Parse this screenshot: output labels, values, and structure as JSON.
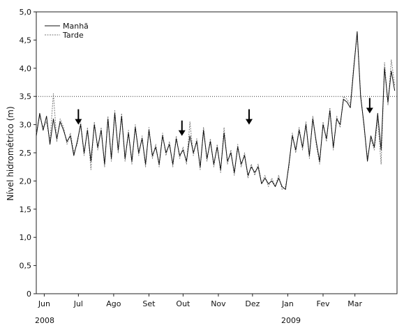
{
  "chart_data": {
    "type": "line",
    "xlabel": "",
    "ylabel": "Nível hidrométrico (m)",
    "ylim": [
      0,
      5
    ],
    "y_ticks": [
      "0",
      "0,5",
      "1,0",
      "1,5",
      "2,0",
      "2,5",
      "3,0",
      "3,5",
      "4,0",
      "4,5",
      "5,0"
    ],
    "x_ticks": [
      "Jun",
      "Jul",
      "Ago",
      "Set",
      "Out",
      "Nov",
      "Dez",
      "Jan",
      "Fev",
      "Mar"
    ],
    "year_labels": [
      "2008",
      "2009"
    ],
    "legend_position": "top-left",
    "grid": false,
    "reference_line": {
      "y": 3.5,
      "style": "dotted"
    },
    "arrows": [
      {
        "date": "2008-07-01",
        "y": 3.0
      },
      {
        "date": "2008-09-30",
        "y": 2.8
      },
      {
        "date": "2008-11-28",
        "y": 3.0
      },
      {
        "date": "2009-03-14",
        "y": 3.2
      }
    ],
    "x_start": "2008-05-25",
    "x_end": "2009-04-07",
    "series": [
      {
        "name": "Manhã",
        "color": "#111111",
        "style": "solid",
        "x": [
          "2008-05-25",
          "2008-05-28",
          "2008-05-31",
          "2008-06-03",
          "2008-06-06",
          "2008-06-09",
          "2008-06-12",
          "2008-06-15",
          "2008-06-18",
          "2008-06-21",
          "2008-06-24",
          "2008-06-27",
          "2008-06-30",
          "2008-07-03",
          "2008-07-06",
          "2008-07-09",
          "2008-07-12",
          "2008-07-15",
          "2008-07-18",
          "2008-07-21",
          "2008-07-24",
          "2008-07-27",
          "2008-07-30",
          "2008-08-02",
          "2008-08-05",
          "2008-08-08",
          "2008-08-11",
          "2008-08-14",
          "2008-08-17",
          "2008-08-20",
          "2008-08-23",
          "2008-08-26",
          "2008-08-29",
          "2008-09-01",
          "2008-09-04",
          "2008-09-07",
          "2008-09-10",
          "2008-09-13",
          "2008-09-16",
          "2008-09-19",
          "2008-09-22",
          "2008-09-25",
          "2008-09-28",
          "2008-10-01",
          "2008-10-04",
          "2008-10-07",
          "2008-10-10",
          "2008-10-13",
          "2008-10-16",
          "2008-10-19",
          "2008-10-22",
          "2008-10-25",
          "2008-10-28",
          "2008-10-31",
          "2008-11-03",
          "2008-11-06",
          "2008-11-09",
          "2008-11-12",
          "2008-11-15",
          "2008-11-18",
          "2008-11-21",
          "2008-11-24",
          "2008-11-27",
          "2008-11-30",
          "2008-12-03",
          "2008-12-06",
          "2008-12-09",
          "2008-12-12",
          "2008-12-15",
          "2008-12-18",
          "2008-12-21",
          "2008-12-24",
          "2008-12-27",
          "2008-12-30",
          "2009-01-02",
          "2009-01-05",
          "2009-01-08",
          "2009-01-11",
          "2009-01-14",
          "2009-01-17",
          "2009-01-20",
          "2009-01-23",
          "2009-01-26",
          "2009-01-29",
          "2009-02-01",
          "2009-02-04",
          "2009-02-07",
          "2009-02-10",
          "2009-02-13",
          "2009-02-16",
          "2009-02-19",
          "2009-02-22",
          "2009-02-25",
          "2009-02-28",
          "2009-03-03",
          "2009-03-06",
          "2009-03-09",
          "2009-03-12",
          "2009-03-15",
          "2009-03-18",
          "2009-03-21",
          "2009-03-24",
          "2009-03-27",
          "2009-03-30",
          "2009-04-02",
          "2009-04-05"
        ],
        "values": [
          2.8,
          3.2,
          2.9,
          3.15,
          2.65,
          3.1,
          2.75,
          3.05,
          2.9,
          2.7,
          2.8,
          2.45,
          2.7,
          3.0,
          2.5,
          2.9,
          2.35,
          3.0,
          2.6,
          2.9,
          2.3,
          3.1,
          2.4,
          3.2,
          2.55,
          3.15,
          2.4,
          2.85,
          2.35,
          2.95,
          2.5,
          2.75,
          2.3,
          2.9,
          2.45,
          2.6,
          2.3,
          2.8,
          2.5,
          2.65,
          2.3,
          2.75,
          2.45,
          2.55,
          2.35,
          2.8,
          2.5,
          2.7,
          2.25,
          2.9,
          2.4,
          2.7,
          2.3,
          2.6,
          2.2,
          2.85,
          2.35,
          2.5,
          2.15,
          2.6,
          2.3,
          2.45,
          2.1,
          2.25,
          2.15,
          2.25,
          1.95,
          2.05,
          1.95,
          2.0,
          1.9,
          2.05,
          1.9,
          1.85,
          2.3,
          2.8,
          2.55,
          2.9,
          2.6,
          3.0,
          2.45,
          3.1,
          2.7,
          2.35,
          3.0,
          2.75,
          3.25,
          2.6,
          3.1,
          3.0,
          3.45,
          3.4,
          3.3,
          4.0,
          4.65,
          3.5,
          3.0,
          2.35,
          2.8,
          2.6,
          3.2,
          2.55,
          4.0,
          3.4,
          3.95,
          3.6
        ]
      },
      {
        "name": "Tarde",
        "color": "#777777",
        "style": "dotted",
        "x": [
          "2008-05-25",
          "2008-05-28",
          "2008-05-31",
          "2008-06-03",
          "2008-06-06",
          "2008-06-09",
          "2008-06-12",
          "2008-06-15",
          "2008-06-18",
          "2008-06-21",
          "2008-06-24",
          "2008-06-27",
          "2008-06-30",
          "2008-07-03",
          "2008-07-06",
          "2008-07-09",
          "2008-07-12",
          "2008-07-15",
          "2008-07-18",
          "2008-07-21",
          "2008-07-24",
          "2008-07-27",
          "2008-07-30",
          "2008-08-02",
          "2008-08-05",
          "2008-08-08",
          "2008-08-11",
          "2008-08-14",
          "2008-08-17",
          "2008-08-20",
          "2008-08-23",
          "2008-08-26",
          "2008-08-29",
          "2008-09-01",
          "2008-09-04",
          "2008-09-07",
          "2008-09-10",
          "2008-09-13",
          "2008-09-16",
          "2008-09-19",
          "2008-09-22",
          "2008-09-25",
          "2008-09-28",
          "2008-10-01",
          "2008-10-04",
          "2008-10-07",
          "2008-10-10",
          "2008-10-13",
          "2008-10-16",
          "2008-10-19",
          "2008-10-22",
          "2008-10-25",
          "2008-10-28",
          "2008-10-31",
          "2008-11-03",
          "2008-11-06",
          "2008-11-09",
          "2008-11-12",
          "2008-11-15",
          "2008-11-18",
          "2008-11-21",
          "2008-11-24",
          "2008-11-27",
          "2008-11-30",
          "2008-12-03",
          "2008-12-06",
          "2008-12-09",
          "2008-12-12",
          "2008-12-15",
          "2008-12-18",
          "2008-12-21",
          "2008-12-24",
          "2008-12-27",
          "2008-12-30",
          "2009-01-02",
          "2009-01-05",
          "2009-01-08",
          "2009-01-11",
          "2009-01-14",
          "2009-01-17",
          "2009-01-20",
          "2009-01-23",
          "2009-01-26",
          "2009-01-29",
          "2009-02-01",
          "2009-02-04",
          "2009-02-07",
          "2009-02-10",
          "2009-02-13",
          "2009-02-16",
          "2009-02-19",
          "2009-02-22",
          "2009-02-25",
          "2009-02-28",
          "2009-03-03",
          "2009-03-06",
          "2009-03-09",
          "2009-03-12",
          "2009-03-15",
          "2009-03-18",
          "2009-03-21",
          "2009-03-24",
          "2009-03-27",
          "2009-03-30",
          "2009-04-02",
          "2009-04-05"
        ],
        "values": [
          2.85,
          3.15,
          2.95,
          3.05,
          2.7,
          3.55,
          2.7,
          3.1,
          2.95,
          2.65,
          2.85,
          2.5,
          2.65,
          3.05,
          2.45,
          2.95,
          2.2,
          3.05,
          2.55,
          2.95,
          2.25,
          3.15,
          2.35,
          3.25,
          2.5,
          3.2,
          2.35,
          2.9,
          2.3,
          3.0,
          2.45,
          2.8,
          2.25,
          2.95,
          2.4,
          2.65,
          2.25,
          2.85,
          2.45,
          2.7,
          2.25,
          2.8,
          2.4,
          2.6,
          2.3,
          3.05,
          2.45,
          2.75,
          2.2,
          2.95,
          2.35,
          2.75,
          2.25,
          2.65,
          2.15,
          2.95,
          2.3,
          2.55,
          2.1,
          2.65,
          2.25,
          2.5,
          2.05,
          2.3,
          2.1,
          2.3,
          1.95,
          2.1,
          1.9,
          2.05,
          1.9,
          2.1,
          1.85,
          1.9,
          2.25,
          2.85,
          2.5,
          2.95,
          2.55,
          3.05,
          2.4,
          3.15,
          2.65,
          2.3,
          3.05,
          2.7,
          3.3,
          2.55,
          3.15,
          2.95,
          3.5,
          3.45,
          3.35,
          4.05,
          4.6,
          3.55,
          2.95,
          2.4,
          2.75,
          2.55,
          3.1,
          2.3,
          4.1,
          3.35,
          4.15,
          3.7
        ]
      }
    ]
  }
}
